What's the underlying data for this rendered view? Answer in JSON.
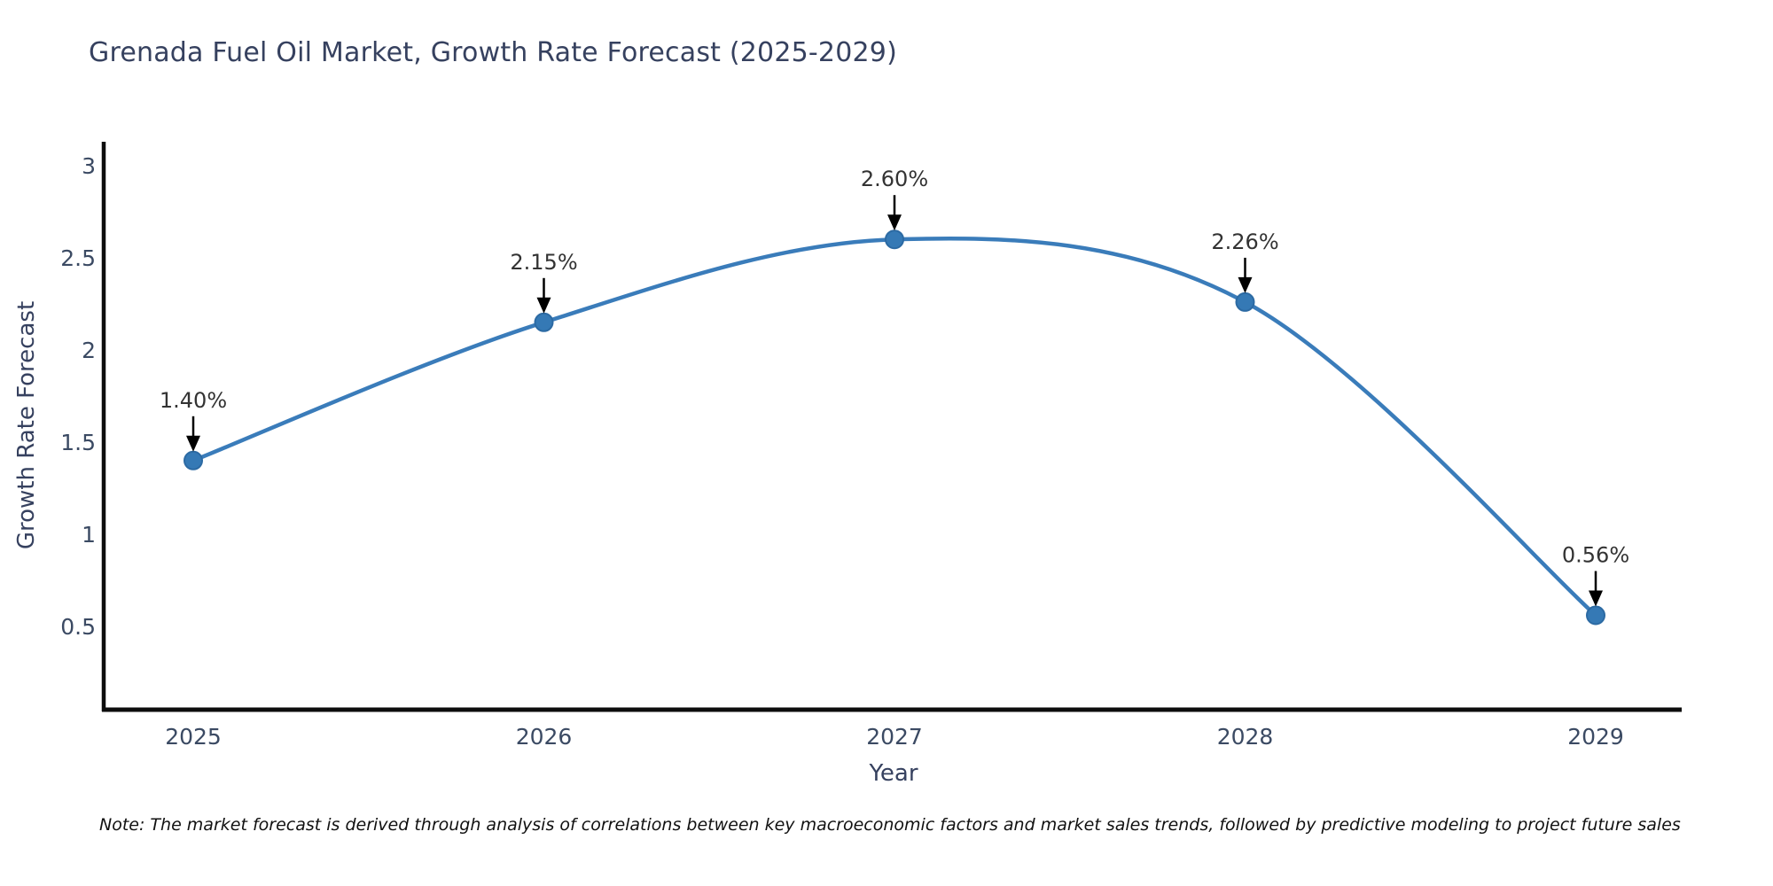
{
  "page": {
    "title": "Grenada Fuel Oil Market, Growth Rate Forecast (2025-2029)",
    "note": "Note: The market forecast is derived through analysis of correlations between key macroeconomic factors and market sales trends, followed by predictive modeling to project future sales"
  },
  "chart_data": {
    "type": "line",
    "title": "Grenada Fuel Oil Market, Growth Rate Forecast (2025-2029)",
    "xlabel": "Year",
    "ylabel": "Growth Rate Forecast",
    "categories": [
      "2025",
      "2026",
      "2027",
      "2028",
      "2029"
    ],
    "values": [
      1.4,
      2.15,
      2.6,
      2.26,
      0.56
    ],
    "point_labels": [
      "1.40%",
      "2.15%",
      "2.60%",
      "2.26%",
      "0.56%"
    ],
    "yticks": [
      0.5,
      1,
      1.5,
      2,
      2.5,
      3
    ],
    "ylim": [
      0.05,
      3.15
    ],
    "line_shape": "spline",
    "grid": false,
    "legend_position": "none",
    "annotations": "value labels with downward arrows above each marker",
    "colors": {
      "line": "#3a7cba",
      "marker_fill": "#3579b5",
      "marker_edge": "#2c6aa3",
      "axis": "#0d0d0d",
      "tick_label": "#3b4a63",
      "title": "#36415f",
      "annotation_text": "#333333",
      "annotation_arrow": "#000000",
      "background": "#ffffff"
    }
  }
}
